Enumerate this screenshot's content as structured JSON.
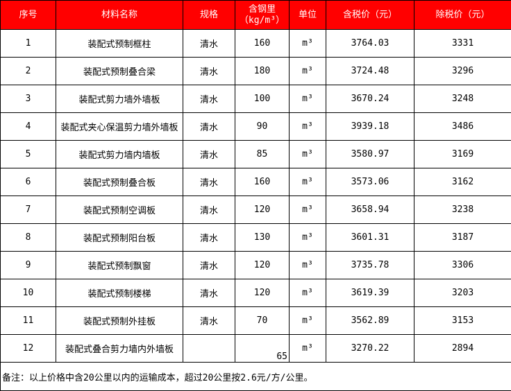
{
  "headers": [
    "序号",
    "材料名称",
    "规格",
    "含钢里",
    "（kg/m³）",
    "单位",
    "含税价（元）",
    "除税价（元）"
  ],
  "rows": [
    {
      "no": "1",
      "name": "装配式预制框柱",
      "spec": "清水",
      "steel": "160",
      "unit": "m³",
      "price_tax": "3764.03",
      "price_notax": "3331"
    },
    {
      "no": "2",
      "name": "装配式预制叠合梁",
      "spec": "清水",
      "steel": "180",
      "unit": "m³",
      "price_tax": "3724.48",
      "price_notax": "3296"
    },
    {
      "no": "3",
      "name": "装配式剪力墙外墙板",
      "spec": "清水",
      "steel": "100",
      "unit": "m³",
      "price_tax": "3670.24",
      "price_notax": "3248"
    },
    {
      "no": "4",
      "name": "装配式夹心保温剪力墙外墙板",
      "spec": "清水",
      "steel": "90",
      "unit": "m³",
      "price_tax": "3939.18",
      "price_notax": "3486"
    },
    {
      "no": "5",
      "name": "装配式剪力墙内墙板",
      "spec": "清水",
      "steel": "85",
      "unit": "m³",
      "price_tax": "3580.97",
      "price_notax": "3169"
    },
    {
      "no": "6",
      "name": "装配式预制叠合板",
      "spec": "清水",
      "steel": "160",
      "unit": "m³",
      "price_tax": "3573.06",
      "price_notax": "3162"
    },
    {
      "no": "7",
      "name": "装配式预制空调板",
      "spec": "清水",
      "steel": "120",
      "unit": "m³",
      "price_tax": "3658.94",
      "price_notax": "3238"
    },
    {
      "no": "8",
      "name": "装配式预制阳台板",
      "spec": "清水",
      "steel": "130",
      "unit": "m³",
      "price_tax": "3601.31",
      "price_notax": "3187"
    },
    {
      "no": "9",
      "name": "装配式预制飘窗",
      "spec": "清水",
      "steel": "120",
      "unit": "m³",
      "price_tax": "3735.78",
      "price_notax": "3306"
    },
    {
      "no": "10",
      "name": "装配式预制楼梯",
      "spec": "清水",
      "steel": "120",
      "unit": "m³",
      "price_tax": "3619.39",
      "price_notax": "3203"
    },
    {
      "no": "11",
      "name": "装配式预制外挂板",
      "spec": "清水",
      "steel": "70",
      "unit": "m³",
      "price_tax": "3562.89",
      "price_notax": "3153"
    },
    {
      "no": "12",
      "name": "装配式叠合剪力墙内外墙板",
      "spec": "",
      "steel": "65",
      "unit": "m³",
      "price_tax": "3270.22",
      "price_notax": "2894"
    }
  ],
  "note": "备注：以上价格中含20公里以内的运输成本，超过20公里按2.6元/方/公里。",
  "colors": {
    "header_bg": "#ff0000",
    "header_text": "#ffffff"
  }
}
